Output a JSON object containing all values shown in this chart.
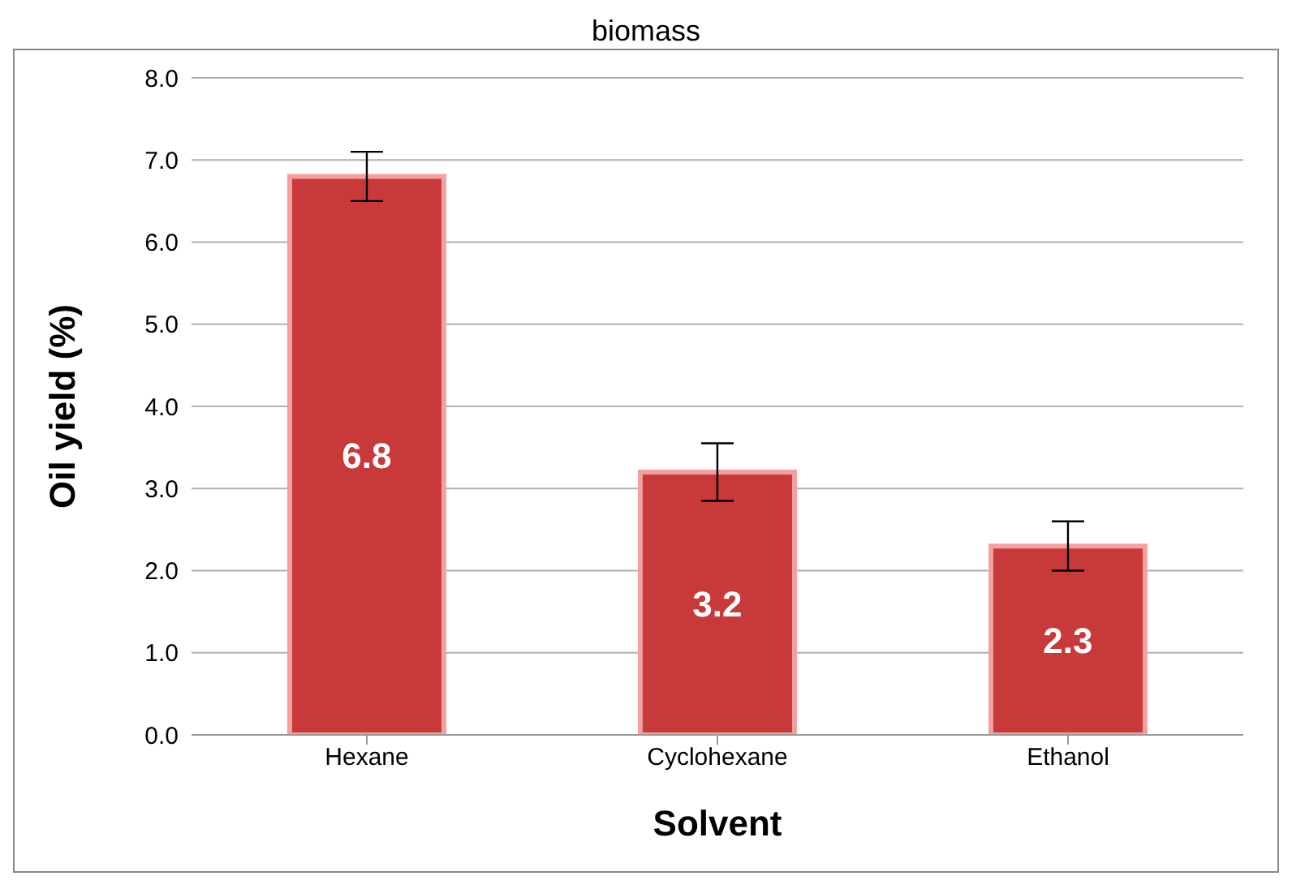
{
  "chart_data": {
    "type": "bar",
    "title": "biomass",
    "xlabel": "Solvent",
    "ylabel": "Oil yield (%)",
    "categories": [
      "Hexane",
      "Cyclohexane",
      "Ethanol"
    ],
    "values": [
      6.8,
      3.2,
      2.3
    ],
    "errors": [
      0.3,
      0.35,
      0.3
    ],
    "color": "#c83a3a",
    "ylim": [
      0,
      8
    ],
    "yticks": [
      {
        "value": 0,
        "label": "0.0"
      },
      {
        "value": 1,
        "label": "1.0"
      },
      {
        "value": 2,
        "label": "2.0"
      },
      {
        "value": 3,
        "label": "3.0"
      },
      {
        "value": 4,
        "label": "4.0"
      },
      {
        "value": 5,
        "label": "5.0"
      },
      {
        "value": 6,
        "label": "6.0"
      },
      {
        "value": 7,
        "label": "7.0"
      },
      {
        "value": 8,
        "label": "8.0"
      }
    ],
    "grid": "y",
    "data_labels": true
  }
}
